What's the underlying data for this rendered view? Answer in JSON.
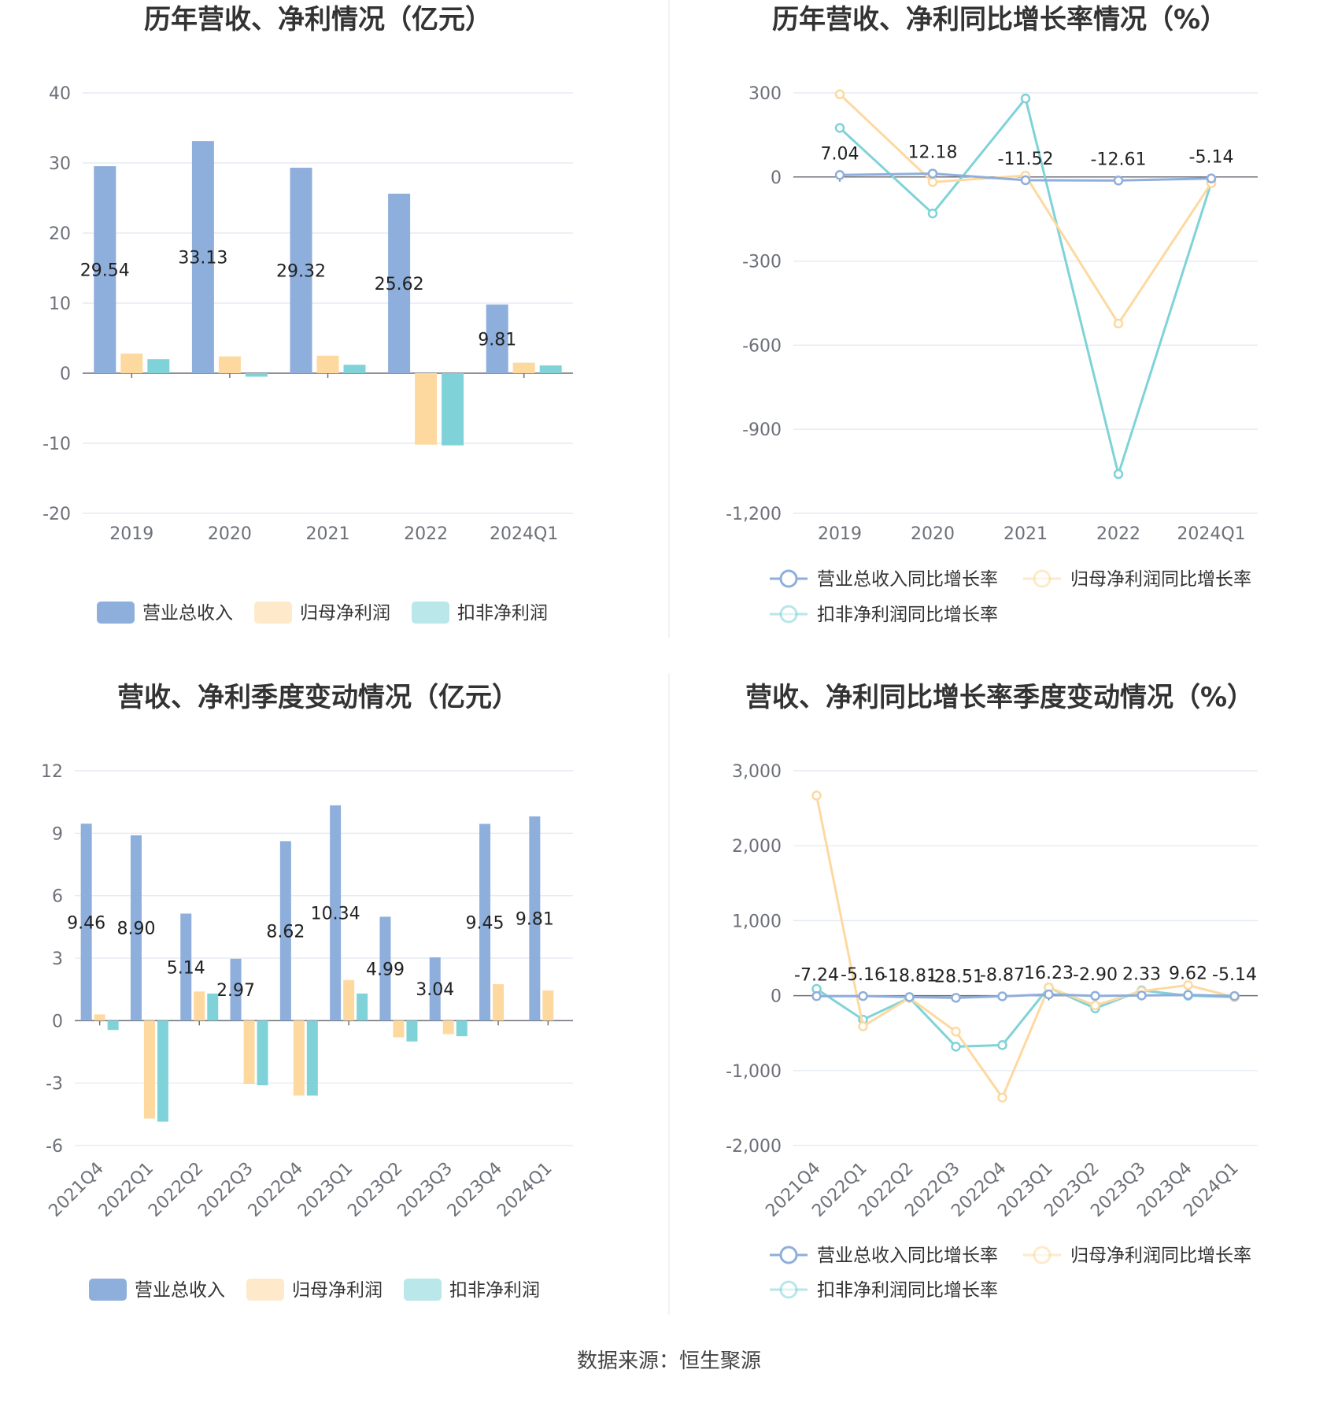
{
  "source": "数据来源：恒生聚源",
  "colors": {
    "revenue": "#8eaedb",
    "net_profit": "#fdd9a0",
    "deducted_profit": "#7fd3d8",
    "grid": "#e0e6f1",
    "axis": "#6e7079"
  },
  "chart_data": [
    {
      "type": "bar",
      "title": "历年营收、净利情况（亿元）",
      "categories": [
        "2019",
        "2020",
        "2021",
        "2022",
        "2024Q1"
      ],
      "ylim": [
        -20,
        40
      ],
      "yticks": [
        -20,
        -10,
        0,
        10,
        20,
        30,
        40
      ],
      "series": [
        {
          "name": "营业总收入",
          "values": [
            29.54,
            33.13,
            29.32,
            25.62,
            9.81
          ],
          "labels": [
            "29.54",
            "33.13",
            "29.32",
            "25.62",
            "9.81"
          ]
        },
        {
          "name": "归母净利润",
          "values": [
            2.8,
            2.4,
            2.5,
            -10.2,
            1.5
          ]
        },
        {
          "name": "扣非净利润",
          "values": [
            2.0,
            -0.5,
            1.2,
            -10.3,
            1.1
          ]
        }
      ],
      "legend": "bottom",
      "grid": true
    },
    {
      "type": "line",
      "title": "历年营收、净利同比增长率情况（%）",
      "categories": [
        "2019",
        "2020",
        "2021",
        "2022",
        "2024Q1"
      ],
      "ylim": [
        -1200,
        300
      ],
      "yticks": [
        -1200,
        -900,
        -600,
        -300,
        0,
        300
      ],
      "series": [
        {
          "name": "营业总收入同比增长率",
          "values": [
            7.04,
            12.18,
            -11.52,
            -12.61,
            -5.14
          ],
          "labels": [
            "7.04",
            "12.18",
            "-11.52",
            "-12.61",
            "-5.14"
          ]
        },
        {
          "name": "归母净利润同比增长率",
          "values": [
            295,
            -18,
            5,
            -523,
            -22
          ]
        },
        {
          "name": "扣非净利润同比增长率",
          "values": [
            175,
            -130,
            280,
            -1060,
            -20
          ]
        }
      ],
      "legend": "bottom",
      "grid": true
    },
    {
      "type": "bar",
      "title": "营收、净利季度变动情况（亿元）",
      "categories": [
        "2021Q4",
        "2022Q1",
        "2022Q2",
        "2022Q3",
        "2022Q4",
        "2023Q1",
        "2023Q2",
        "2023Q3",
        "2023Q4",
        "2024Q1"
      ],
      "ylim": [
        -6,
        12
      ],
      "yticks": [
        -6,
        -3,
        0,
        3,
        6,
        9,
        12
      ],
      "series": [
        {
          "name": "营业总收入",
          "values": [
            9.46,
            8.9,
            5.14,
            2.97,
            8.62,
            10.34,
            4.99,
            3.04,
            9.45,
            9.81
          ],
          "labels": [
            "9.46",
            "8.90",
            "5.14",
            "2.97",
            "8.62",
            "10.34",
            "4.99",
            "3.04",
            "9.45",
            "9.81"
          ]
        },
        {
          "name": "归母净利润",
          "values": [
            0.3,
            -4.7,
            1.4,
            -3.05,
            -3.6,
            1.95,
            -0.8,
            -0.65,
            1.75,
            1.45
          ]
        },
        {
          "name": "扣非净利润",
          "values": [
            -0.45,
            -4.85,
            1.3,
            -3.1,
            -3.6,
            1.3,
            -1.0,
            -0.75,
            0,
            0
          ]
        }
      ],
      "legend": "bottom",
      "grid": true
    },
    {
      "type": "line",
      "title": "营收、净利同比增长率季度变动情况（%）",
      "categories": [
        "2021Q4",
        "2022Q1",
        "2022Q2",
        "2022Q3",
        "2022Q4",
        "2023Q1",
        "2023Q2",
        "2023Q3",
        "2023Q4",
        "2024Q1"
      ],
      "ylim": [
        -2000,
        3000
      ],
      "yticks": [
        -2000,
        -1000,
        0,
        1000,
        2000,
        3000
      ],
      "series": [
        {
          "name": "营业总收入同比增长率",
          "values": [
            -7.24,
            -5.16,
            -18.81,
            -28.51,
            -8.87,
            16.23,
            -2.9,
            2.33,
            9.62,
            -5.14
          ],
          "labels": [
            "-7.24",
            "-5.16",
            "-18.81",
            "-28.51",
            "-8.87",
            "16.23",
            "-2.90",
            "2.33",
            "9.62",
            "-5.14"
          ]
        },
        {
          "name": "归母净利润同比增长率",
          "values": [
            2670,
            -410,
            -30,
            -480,
            -1360,
            110,
            -130,
            60,
            140,
            -20
          ]
        },
        {
          "name": "扣非净利润同比增长率",
          "values": [
            90,
            -320,
            -30,
            -680,
            -660,
            110,
            -170,
            70,
            0,
            -20
          ]
        }
      ],
      "legend": "bottom",
      "grid": true
    }
  ]
}
